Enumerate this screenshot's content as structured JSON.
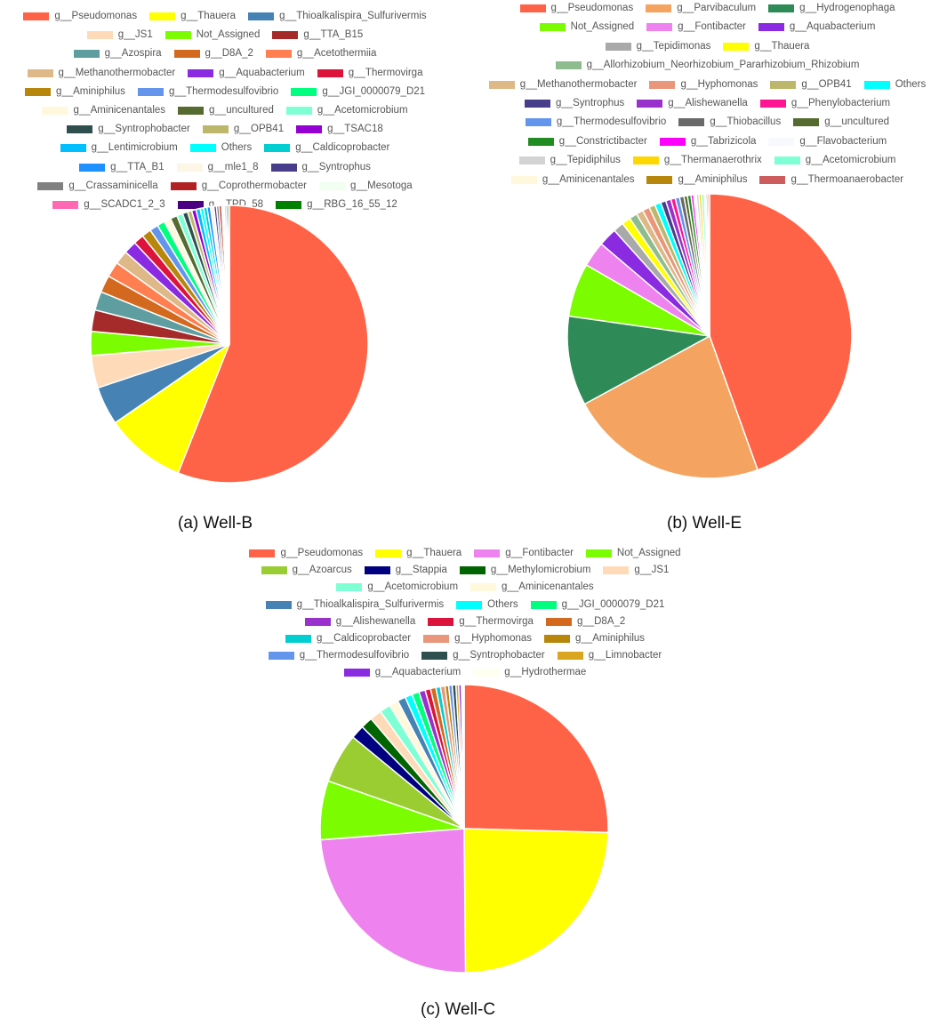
{
  "chart_data": [
    {
      "type": "pie",
      "title": "",
      "caption": "(a) Well-B",
      "categories": [
        "g__Pseudomonas",
        "g__Thauera",
        "g__Thioalkalispira_Sulfurivermis",
        "g__JS1",
        "Not_Assigned",
        "g__TTA_B15",
        "g__Azospira",
        "g__D8A_2",
        "g__Acetothermiia",
        "g__Methanothermobacter",
        "g__Aquabacterium",
        "g__Thermovirga",
        "g__Aminiphilus",
        "g__Thermodesulfovibrio",
        "g__JGI_0000079_D21",
        "g__Aminicenantales",
        "g__uncultured",
        "g__Acetomicrobium",
        "g__Syntrophobacter",
        "g__OPB41",
        "g__TSAC18",
        "g__Lentimicrobium",
        "Others",
        "g__Caldicoprobacter",
        "g__TTA_B1",
        "g__mle1_8",
        "g__Syntrophus",
        "g__Crassaminicella",
        "g__Coprothermobacter",
        "g__Mesotoga",
        "g__SCADC1_2_3",
        "g__TPD_58",
        "g__RBG_16_55_12"
      ],
      "values": [
        56.2,
        9.4,
        4.5,
        3.8,
        2.8,
        2.5,
        2.2,
        2.0,
        1.8,
        1.6,
        1.5,
        1.2,
        1.1,
        1.0,
        0.9,
        0.8,
        0.8,
        0.7,
        0.6,
        0.5,
        0.5,
        0.5,
        0.4,
        0.4,
        0.4,
        0.4,
        0.3,
        0.3,
        0.3,
        0.3,
        0.2,
        0.2,
        0.2
      ],
      "colors": [
        "#FF6347",
        "#FFFF00",
        "#4682B4",
        "#FFDAB9",
        "#7CFC00",
        "#A52A2A",
        "#5F9EA0",
        "#D2691E",
        "#FF7F50",
        "#DEB887",
        "#8A2BE2",
        "#DC143C",
        "#B8860B",
        "#6495ED",
        "#00FF7F",
        "#FFF8DC",
        "#556B2F",
        "#7FFFD4",
        "#2F4F4F",
        "#BDB76B",
        "#9400D3",
        "#00BFFF",
        "#00FFFF",
        "#00CED1",
        "#1E90FF",
        "#FDF5E6",
        "#483D8B",
        "#808080",
        "#B22222",
        "#F0FFF0",
        "#FF69B4",
        "#4B0082",
        "#008000"
      ],
      "legend_rows": [
        3,
        3,
        3,
        3,
        3,
        3,
        3,
        3,
        3,
        3,
        3
      ]
    },
    {
      "type": "pie",
      "title": "",
      "caption": "(b) Well-E",
      "categories": [
        "g__Pseudomonas",
        "g__Parvibaculum",
        "g__Hydrogenophaga",
        "Not_Assigned",
        "g__Fontibacter",
        "g__Aquabacterium",
        "g__Tepidimonas",
        "g__Thauera",
        "g__Allorhizobium_Neorhizobium_Pararhizobium_Rhizobium",
        "g__Methanothermobacter",
        "g__Hyphomonas",
        "g__OPB41",
        "Others",
        "g__Syntrophus",
        "g__Alishewanella",
        "g__Phenylobacterium",
        "g__Thermodesulfovibrio",
        "g__Thiobacillus",
        "g__uncultured",
        "g__Constrictibacter",
        "g__Tabrizicola",
        "g__Flavobacterium",
        "g__Tepidiphilus",
        "g__Thermanaerothrix",
        "g__Acetomicrobium",
        "g__Aminicenantales",
        "g__Aminiphilus",
        "g__Thermoanaerobacter"
      ],
      "values": [
        44.6,
        22.6,
        10.2,
        6.1,
        2.9,
        2.1,
        1.2,
        1.0,
        0.9,
        0.8,
        0.8,
        0.7,
        0.7,
        0.6,
        0.6,
        0.5,
        0.5,
        0.5,
        0.4,
        0.4,
        0.3,
        0.3,
        0.3,
        0.3,
        0.3,
        0.2,
        0.2,
        0.2
      ],
      "colors": [
        "#FF6347",
        "#F4A460",
        "#2E8B57",
        "#7CFC00",
        "#EE82EE",
        "#8A2BE2",
        "#A9A9A9",
        "#FFFF00",
        "#8FBC8F",
        "#DEB887",
        "#E9967A",
        "#BDB76B",
        "#00FFFF",
        "#483D8B",
        "#9932CC",
        "#FF1493",
        "#6495ED",
        "#696969",
        "#556B2F",
        "#228B22",
        "#FF00FF",
        "#F8F8FF",
        "#D3D3D3",
        "#FFD700",
        "#7FFFD4",
        "#FFF8DC",
        "#B8860B",
        "#CD5C5C"
      ],
      "legend_rows": [
        3,
        3,
        2,
        1,
        4,
        3,
        3,
        3,
        3,
        3
      ]
    },
    {
      "type": "pie",
      "title": "",
      "caption": "(c) Well-C",
      "categories": [
        "g__Pseudomonas",
        "g__Thauera",
        "g__Fontibacter",
        "Not_Assigned",
        "g__Azoarcus",
        "g__Stappia",
        "g__Methylomicrobium",
        "g__JS1",
        "g__Acetomicrobium",
        "g__Aminicenantales",
        "g__Thioalkalispira_Sulfurivermis",
        "Others",
        "g__JGI_0000079_D21",
        "g__Alishewanella",
        "g__Thermovirga",
        "g__D8A_2",
        "g__Caldicoprobacter",
        "g__Hyphomonas",
        "g__Aminiphilus",
        "g__Thermodesulfovibrio",
        "g__Syntrophobacter",
        "g__Limnobacter",
        "g__Aquabacterium",
        "g__Hydrothermae"
      ],
      "values": [
        25.0,
        24.0,
        23.5,
        6.5,
        5.5,
        1.5,
        1.3,
        1.3,
        1.2,
        1.0,
        0.9,
        0.8,
        0.8,
        0.7,
        0.6,
        0.6,
        0.5,
        0.5,
        0.4,
        0.4,
        0.4,
        0.3,
        0.3,
        0.3
      ],
      "colors": [
        "#FF6347",
        "#FFFF00",
        "#EE82EE",
        "#7CFC00",
        "#9ACD32",
        "#000080",
        "#006400",
        "#FFDAB9",
        "#7FFFD4",
        "#FFF8DC",
        "#4682B4",
        "#00FFFF",
        "#00FF7F",
        "#9932CC",
        "#DC143C",
        "#D2691E",
        "#00CED1",
        "#E9967A",
        "#B8860B",
        "#6495ED",
        "#2F4F4F",
        "#DAA520",
        "#8A2BE2",
        "#FFFFF0"
      ],
      "legend_rows": [
        4,
        4,
        2,
        3,
        3,
        3,
        3,
        2
      ]
    }
  ]
}
